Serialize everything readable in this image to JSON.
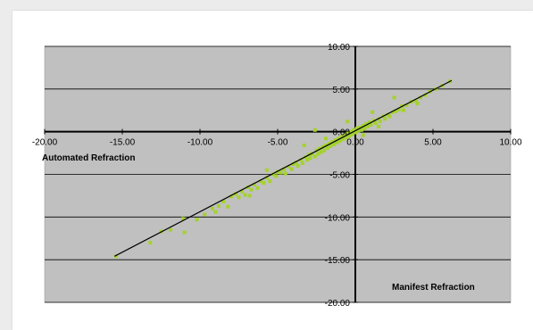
{
  "chart_data": {
    "type": "scatter",
    "xlabel": "Automated Refraction",
    "ylabel": "Manifest Refraction",
    "xlim": [
      -20,
      10
    ],
    "ylim": [
      -20,
      10
    ],
    "x_ticks": [
      "-20.00",
      "-15.00",
      "-10.00",
      "-5.00",
      "0.00",
      "5.00",
      "10.00"
    ],
    "y_ticks": [
      "10.00",
      "5.00",
      "0.00",
      "-5.00",
      "-10.00",
      "-15.00",
      "-20.00"
    ],
    "grid": "horizontal",
    "plot_background": "#c0c0c0",
    "marker_color": "#a4d22c",
    "trendline_color": "#000000",
    "trendline": {
      "x": [
        -15.5,
        6.2
      ],
      "y": [
        -14.6,
        6.0
      ]
    },
    "series": [
      {
        "points": [
          [
            -15.4,
            -14.6
          ],
          [
            -13.2,
            -13.0
          ],
          [
            -12.5,
            -11.7
          ],
          [
            -11.9,
            -11.5
          ],
          [
            -11.1,
            -10.2
          ],
          [
            -11.0,
            -11.8
          ],
          [
            -10.2,
            -10.3
          ],
          [
            -9.7,
            -9.7
          ],
          [
            -9.2,
            -9.0
          ],
          [
            -8.8,
            -8.7
          ],
          [
            -8.5,
            -8.2
          ],
          [
            -8.2,
            -8.8
          ],
          [
            -8.0,
            -7.6
          ],
          [
            -7.7,
            -7.3
          ],
          [
            -7.5,
            -7.7
          ],
          [
            -7.3,
            -7.0
          ],
          [
            -7.1,
            -7.4
          ],
          [
            -6.9,
            -6.5
          ],
          [
            -6.7,
            -6.8
          ],
          [
            -6.5,
            -6.2
          ],
          [
            -6.3,
            -6.6
          ],
          [
            -6.1,
            -5.8
          ],
          [
            -5.9,
            -6.0
          ],
          [
            -5.7,
            -5.4
          ],
          [
            -5.5,
            -5.8
          ],
          [
            -5.3,
            -5.0
          ],
          [
            -5.1,
            -5.2
          ],
          [
            -5.0,
            -4.7
          ],
          [
            -4.8,
            -4.8
          ],
          [
            -4.6,
            -4.4
          ],
          [
            -4.5,
            -4.9
          ],
          [
            -4.3,
            -4.1
          ],
          [
            -4.1,
            -4.4
          ],
          [
            -4.0,
            -3.8
          ],
          [
            -3.8,
            -3.6
          ],
          [
            -3.7,
            -4.0
          ],
          [
            -3.5,
            -3.3
          ],
          [
            -3.4,
            -3.7
          ],
          [
            -3.2,
            -3.0
          ],
          [
            -3.1,
            -3.3
          ],
          [
            -3.0,
            -2.7
          ],
          [
            -2.9,
            -3.1
          ],
          [
            -2.8,
            -2.6
          ],
          [
            -2.6,
            -2.9
          ],
          [
            -2.5,
            -2.2
          ],
          [
            -2.4,
            -2.6
          ],
          [
            -2.3,
            -2.0
          ],
          [
            -2.2,
            -2.4
          ],
          [
            -2.1,
            -1.8
          ],
          [
            -2.0,
            -2.2
          ],
          [
            -1.9,
            -1.6
          ],
          [
            -1.8,
            -1.9
          ],
          [
            -1.7,
            -1.4
          ],
          [
            -1.6,
            -1.7
          ],
          [
            -1.5,
            -1.2
          ],
          [
            -1.4,
            -1.5
          ],
          [
            -1.3,
            -1.0
          ],
          [
            -1.2,
            -1.3
          ],
          [
            -1.1,
            -0.8
          ],
          [
            -1.0,
            -1.1
          ],
          [
            -0.9,
            -0.6
          ],
          [
            -0.8,
            -0.9
          ],
          [
            -0.7,
            -0.4
          ],
          [
            -0.6,
            -0.7
          ],
          [
            -0.5,
            -0.2
          ],
          [
            -0.4,
            -0.5
          ],
          [
            -0.3,
            0.0
          ],
          [
            -0.2,
            -0.3
          ],
          [
            -0.1,
            0.2
          ],
          [
            0.0,
            -0.1
          ],
          [
            0.1,
            0.4
          ],
          [
            0.2,
            0.1
          ],
          [
            0.3,
            0.5
          ],
          [
            0.4,
            0.2
          ],
          [
            0.5,
            0.7
          ],
          [
            0.6,
            0.4
          ],
          [
            0.7,
            0.9
          ],
          [
            0.8,
            0.6
          ],
          [
            0.9,
            1.1
          ],
          [
            1.0,
            0.8
          ],
          [
            1.2,
            1.3
          ],
          [
            1.3,
            1.0
          ],
          [
            1.5,
            1.5
          ],
          [
            1.6,
            1.2
          ],
          [
            1.8,
            1.8
          ],
          [
            1.9,
            1.5
          ],
          [
            2.1,
            2.0
          ],
          [
            2.2,
            1.8
          ],
          [
            2.4,
            2.3
          ],
          [
            2.6,
            2.4
          ],
          [
            2.8,
            2.6
          ],
          [
            3.0,
            3.0
          ],
          [
            3.3,
            3.1
          ],
          [
            3.6,
            3.5
          ],
          [
            3.9,
            3.6
          ],
          [
            4.2,
            4.0
          ],
          [
            4.5,
            4.3
          ],
          [
            4.8,
            4.7
          ],
          [
            5.2,
            5.0
          ],
          [
            5.6,
            5.4
          ],
          [
            6.1,
            5.9
          ],
          [
            -2.6,
            0.2
          ],
          [
            -1.9,
            -0.8
          ],
          [
            -3.3,
            -1.6
          ],
          [
            2.5,
            4.0
          ],
          [
            1.1,
            2.3
          ],
          [
            -0.5,
            1.2
          ],
          [
            3.1,
            2.5
          ],
          [
            4.0,
            3.3
          ],
          [
            -5.7,
            -4.5
          ],
          [
            -6.8,
            -7.5
          ],
          [
            -9.0,
            -9.4
          ],
          [
            0.5,
            -0.4
          ],
          [
            1.5,
            0.6
          ]
        ]
      }
    ]
  }
}
